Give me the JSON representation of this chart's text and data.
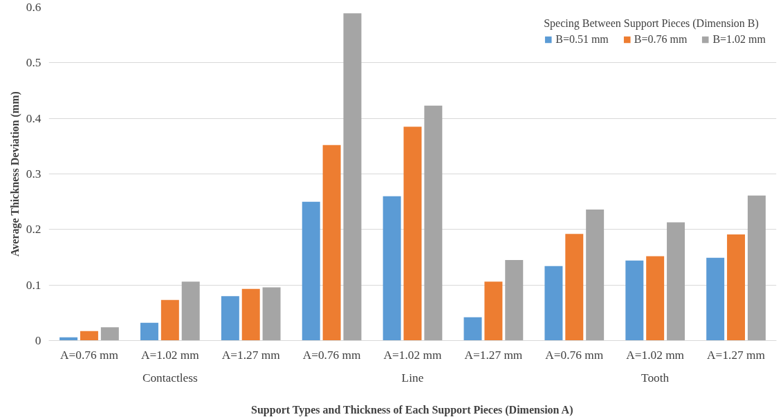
{
  "chart_data": {
    "type": "bar",
    "xlabel": "Support Types and Thickness of Each Support Pieces (Dimension A)",
    "ylabel": "Average Thickness Deviation (mm)",
    "legend_title": "Specing Between Support Pieces (Dimension B)",
    "categories": [
      "A=0.76 mm",
      "A=1.02 mm",
      "A=1.27 mm",
      "A=0.76 mm",
      "A=1.02 mm",
      "A=1.27 mm",
      "A=0.76 mm",
      "A=1.02 mm",
      "A=1.27 mm"
    ],
    "annotations": [
      "Contactless",
      "Line",
      "Tooth"
    ],
    "series": [
      {
        "name": "B=0.51 mm",
        "color": "#5b9bd5",
        "values": [
          0.006,
          0.032,
          0.08,
          0.25,
          0.26,
          0.042,
          0.134,
          0.144,
          0.149
        ]
      },
      {
        "name": "B=0.76 mm",
        "color": "#ed7d31",
        "values": [
          0.017,
          0.073,
          0.093,
          0.352,
          0.385,
          0.106,
          0.192,
          0.152,
          0.191
        ]
      },
      {
        "name": "B=1.02 mm",
        "color": "#a5a5a5",
        "values": [
          0.024,
          0.106,
          0.096,
          0.589,
          0.423,
          0.145,
          0.236,
          0.213,
          0.261
        ]
      }
    ],
    "ylim": [
      0,
      0.6
    ],
    "yticks": [
      0,
      0.1,
      0.2,
      0.3,
      0.4,
      0.5,
      0.6
    ],
    "grid": "y",
    "legend": "top right"
  }
}
